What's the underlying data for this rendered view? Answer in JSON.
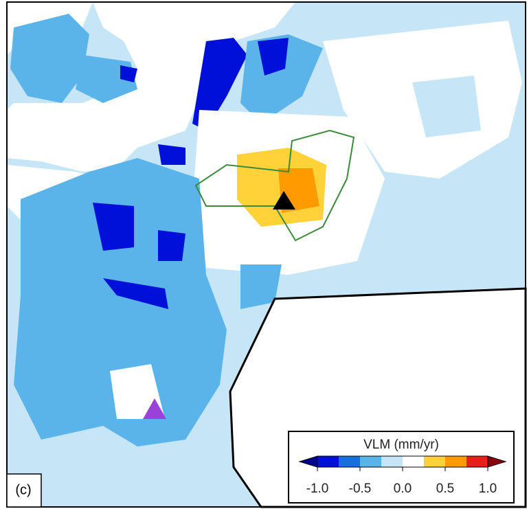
{
  "panel_label": "(c)",
  "colorbar": {
    "title": "VLM (mm/yr)",
    "bins": [
      -1,
      -0.75,
      -0.5,
      -0.25,
      0,
      0.25,
      0.5,
      0.75,
      1
    ],
    "colors": [
      "#0010d8",
      "#1a6fe0",
      "#5ab4ea",
      "#c6e6f7",
      "#ffffff",
      "#ffd23a",
      "#ff9a00",
      "#e8201a"
    ],
    "under_color": "#00008a",
    "over_color": "#8a0010",
    "ticks": [
      {
        "value": -1,
        "label": "-1.0"
      },
      {
        "value": -0.5,
        "label": "-0.5"
      },
      {
        "value": 0,
        "label": "0.0"
      },
      {
        "value": 0.5,
        "label": "0.5"
      },
      {
        "value": 1,
        "label": "1.0"
      }
    ]
  }
}
